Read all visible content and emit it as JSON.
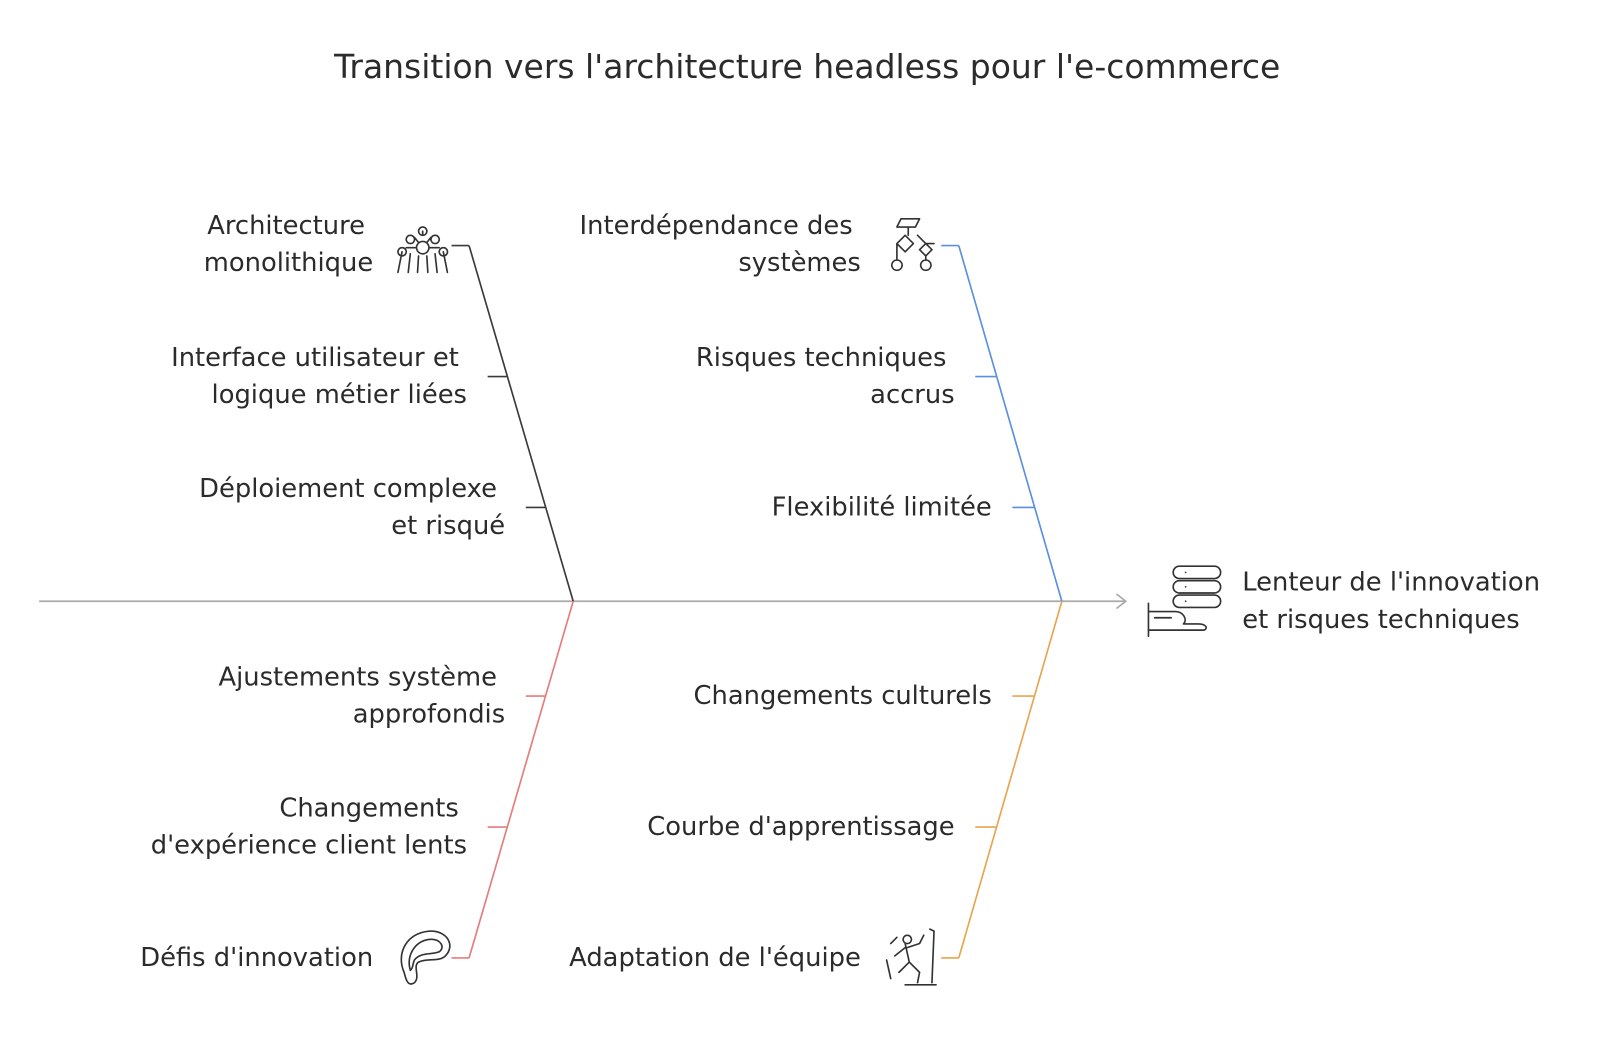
{
  "title": "Transition vers l'architecture headless pour l'e-commerce",
  "effect": {
    "label": "Lenteur de l'innovation et risques techniques"
  },
  "branches": [
    {
      "label": "Architecture monolithique",
      "color": "#3a3a3a",
      "causes": [
        "Interface utilisateur et logique métier liées",
        "Déploiement complexe et risqué"
      ]
    },
    {
      "label": "Interdépendance des systèmes",
      "color": "#5b8fe0",
      "causes": [
        "Risques techniques accrus",
        "Flexibilité limitée"
      ]
    },
    {
      "label": "Défis d'innovation",
      "color": "#e57c7c",
      "causes": [
        "Ajustements système approfondis",
        "Changements d'expérience client lents"
      ]
    },
    {
      "label": "Adaptation de l'équipe",
      "color": "#e9a450",
      "causes": [
        "Changements culturels",
        "Courbe d'apprentissage"
      ]
    }
  ]
}
